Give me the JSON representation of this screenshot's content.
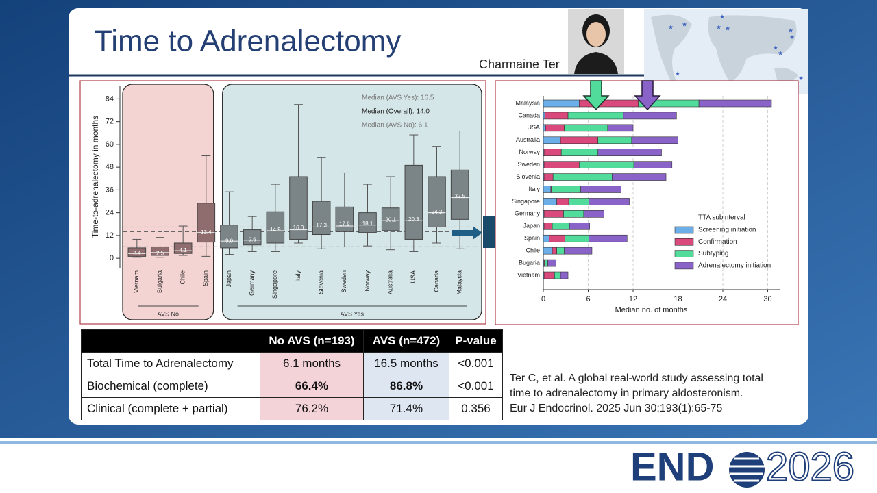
{
  "header": {
    "title": "Time to Adrenalectomy",
    "presenter": "Charmaine Ter"
  },
  "chart_data": [
    {
      "type": "box",
      "y_label": "Time-to-adrenalectomy in months",
      "categories": [
        "Vietnam",
        "Bulgaria",
        "Chile",
        "Spain",
        "Japan",
        "Germany",
        "Singapore",
        "Italy",
        "Slovenia",
        "Sweden",
        "Norway",
        "Australia",
        "USA",
        "Canada",
        "Malaysia"
      ],
      "boxes": [
        {
          "low": 0.5,
          "q1": 1,
          "median": 2.5,
          "q3": 5.5,
          "high": 10
        },
        {
          "low": 0.5,
          "q1": 1.5,
          "median": 3,
          "q3": 6,
          "high": 11
        },
        {
          "low": 1.5,
          "q1": 2.5,
          "median": 4,
          "q3": 8,
          "high": 17
        },
        {
          "low": 1,
          "q1": 8.5,
          "median": 13.5,
          "q3": 29,
          "high": 54
        },
        {
          "low": 2,
          "q1": 5.5,
          "median": 9,
          "q3": 17.5,
          "high": 35
        },
        {
          "low": 3.5,
          "q1": 7,
          "median": 9.5,
          "q3": 15,
          "high": 22
        },
        {
          "low": 3.5,
          "q1": 8,
          "median": 14.5,
          "q3": 24.5,
          "high": 39
        },
        {
          "low": 8,
          "q1": 10,
          "median": 15,
          "q3": 43,
          "high": 81
        },
        {
          "low": 5,
          "q1": 12.5,
          "median": 16.5,
          "q3": 30,
          "high": 53
        },
        {
          "low": 6,
          "q1": 14,
          "median": 17,
          "q3": 27,
          "high": 45
        },
        {
          "low": 6.5,
          "q1": 13.5,
          "median": 17.5,
          "q3": 24,
          "high": 39
        },
        {
          "low": 4.5,
          "q1": 14.5,
          "median": 20,
          "q3": 26.5,
          "high": 43
        },
        {
          "low": 3.5,
          "q1": 10,
          "median": 20,
          "q3": 49,
          "high": 65
        },
        {
          "low": 8,
          "q1": 16.5,
          "median": 24,
          "q3": 43,
          "high": 59
        },
        {
          "low": 5,
          "q1": 20.5,
          "median": 32,
          "q3": 46.5,
          "high": 67
        }
      ],
      "means": [
        2.4,
        2.5,
        4.1,
        13.4,
        9.0,
        9.6,
        14.9,
        16.0,
        17.3,
        17.9,
        18.1,
        20.1,
        20.3,
        24.3,
        32.5
      ],
      "mean_labels": [
        "2.4",
        "2.5",
        "4.1",
        "13.4",
        "9.0",
        "9.6",
        "14.9",
        "16.0",
        "17.3",
        "17.9",
        "18.1",
        "20.1",
        "20.3",
        "24.3",
        "32.5"
      ],
      "groups": [
        {
          "name": "AVS No",
          "size": 4,
          "color": "#8f6d6e",
          "fill": "#f4d3d3"
        },
        {
          "name": "AVS Yes",
          "size": 11,
          "color": "#7b8588",
          "fill": "#d5e6e8"
        }
      ],
      "reference_lines": [
        {
          "label": "Median (AVS Yes): 16.5",
          "value": 16.5
        },
        {
          "label": "Median (Overall): 14.0",
          "value": 14.0
        },
        {
          "label": "Median (AVS No): 6.1",
          "value": 6.1
        }
      ],
      "ylim": [
        -5,
        91
      ],
      "yticks": [
        0,
        12,
        24,
        36,
        48,
        60,
        72,
        84
      ]
    },
    {
      "type": "bar",
      "orientation": "horizontal",
      "stacked": true,
      "categories": [
        "Malaysia",
        "Canada",
        "USA",
        "Australia",
        "Norway",
        "Sweden",
        "Slovenia",
        "Italy",
        "Singapore",
        "Germany",
        "Japan",
        "Spain",
        "Chile",
        "Bugaria",
        "Vietnam"
      ],
      "series": [
        {
          "name": "Screening initiation",
          "color": "#6caee8",
          "values": [
            4.8,
            0.2,
            0.3,
            2.3,
            0.1,
            0.1,
            0.1,
            1.0,
            1.8,
            0.1,
            0.1,
            0.8,
            1.2,
            0.1,
            0.1
          ]
        },
        {
          "name": "Confirmation",
          "color": "#d9497c",
          "values": [
            7.9,
            3.1,
            2.5,
            5.0,
            2.3,
            4.7,
            1.2,
            0.1,
            1.6,
            2.6,
            1.1,
            2.1,
            0.6,
            0.1,
            1.4
          ]
        },
        {
          "name": "Subtyping",
          "color": "#52dc9b",
          "values": [
            8.1,
            7.4,
            5.8,
            4.5,
            4.9,
            7.3,
            7.9,
            3.9,
            2.7,
            2.7,
            2.3,
            3.2,
            1.0,
            0.4,
            0.8
          ]
        },
        {
          "name": "Adrenalectomy initiation",
          "color": "#8a63c9",
          "values": [
            9.7,
            7.1,
            3.4,
            6.2,
            8.5,
            5.1,
            7.2,
            5.4,
            5.4,
            2.7,
            2.7,
            5.1,
            3.7,
            1.1,
            1.0
          ]
        }
      ],
      "legend_title": "TTA subinterval",
      "x_label": "Median no. of months",
      "xlim": [
        0,
        31.6
      ],
      "xticks": [
        0,
        6,
        12,
        18,
        24,
        30
      ],
      "grid": true
    }
  ],
  "table": {
    "header": [
      "No AVS (n=193)",
      "AVS (n=472)",
      "P-value"
    ],
    "rows": [
      [
        "Total Time to Adrenalectomy",
        "6.1 months",
        "16.5 months",
        "<0.001"
      ],
      [
        "Biochemical (complete)",
        "66.4%",
        "86.8%",
        "<0.001"
      ],
      [
        "Clinical (complete + partial)",
        "76.2%",
        "71.4%",
        "0.356"
      ]
    ]
  },
  "citation": [
    "Ter C,  et al. A global real-world study assessing total",
    "time to adrenalectomy in primary aldosteronism.",
    "Eur J Endocrinol. 2025 Jun 30;193(1):65-75"
  ],
  "logo": {
    "text": "END",
    "year": "2026"
  }
}
